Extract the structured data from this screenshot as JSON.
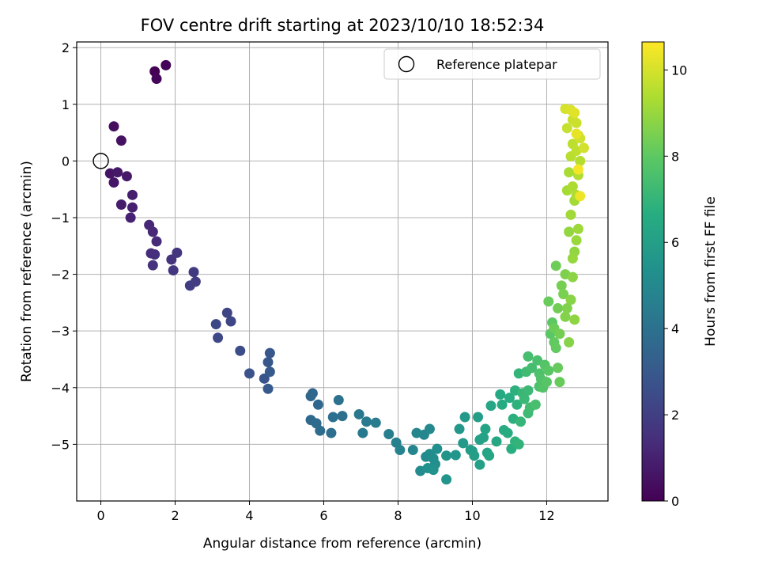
{
  "chart_data": {
    "type": "scatter",
    "title": "FOV centre drift starting at 2023/10/10 18:52:34",
    "xlabel": "Angular distance from reference (arcmin)",
    "ylabel": "Rotation from reference (arcmin)",
    "xlim": [
      -0.65,
      13.65
    ],
    "ylim": [
      -6.0,
      2.1
    ],
    "xticks": [
      0,
      2,
      4,
      6,
      8,
      10,
      12
    ],
    "yticks": [
      -5,
      -4,
      -3,
      -2,
      -1,
      0,
      1,
      2
    ],
    "grid": true,
    "legend": {
      "position": "upper-right",
      "label": "Reference platepar"
    },
    "reference_point": {
      "x": 0,
      "y": 0
    },
    "colorbar": {
      "label": "Hours from first FF file",
      "range": [
        0,
        10.65
      ],
      "ticks": [
        0,
        2,
        4,
        6,
        8,
        10
      ],
      "colormap": "viridis"
    },
    "points": [
      [
        1.45,
        1.58,
        0.0
      ],
      [
        1.75,
        1.69,
        0.1
      ],
      [
        1.5,
        1.45,
        0.15
      ],
      [
        0.35,
        0.61,
        0.4
      ],
      [
        0.55,
        0.36,
        0.5
      ],
      [
        0.25,
        -0.22,
        0.6
      ],
      [
        0.35,
        -0.38,
        0.65
      ],
      [
        0.45,
        -0.2,
        0.7
      ],
      [
        0.7,
        -0.27,
        0.75
      ],
      [
        0.55,
        -0.77,
        0.85
      ],
      [
        0.85,
        -0.6,
        0.9
      ],
      [
        0.85,
        -0.82,
        0.95
      ],
      [
        0.8,
        -1.0,
        1.0
      ],
      [
        1.3,
        -1.13,
        1.2
      ],
      [
        1.4,
        -1.25,
        1.25
      ],
      [
        1.5,
        -1.42,
        1.3
      ],
      [
        1.35,
        -1.63,
        1.4
      ],
      [
        1.45,
        -1.65,
        1.45
      ],
      [
        1.4,
        -1.84,
        1.5
      ],
      [
        1.9,
        -1.74,
        1.6
      ],
      [
        2.05,
        -1.62,
        1.65
      ],
      [
        1.95,
        -1.93,
        1.7
      ],
      [
        2.5,
        -1.96,
        1.85
      ],
      [
        2.55,
        -2.13,
        1.9
      ],
      [
        2.4,
        -2.2,
        1.95
      ],
      [
        3.4,
        -2.68,
        2.2
      ],
      [
        3.5,
        -2.83,
        2.25
      ],
      [
        3.1,
        -2.88,
        2.3
      ],
      [
        3.15,
        -3.12,
        2.35
      ],
      [
        3.75,
        -3.35,
        2.5
      ],
      [
        4.0,
        -3.75,
        2.7
      ],
      [
        4.4,
        -3.84,
        2.8
      ],
      [
        4.55,
        -3.39,
        2.9
      ],
      [
        4.5,
        -3.55,
        2.95
      ],
      [
        4.55,
        -3.72,
        3.0
      ],
      [
        4.5,
        -4.02,
        3.05
      ],
      [
        5.7,
        -4.1,
        3.5
      ],
      [
        5.65,
        -4.15,
        3.55
      ],
      [
        5.85,
        -4.3,
        3.6
      ],
      [
        5.65,
        -4.57,
        3.7
      ],
      [
        5.8,
        -4.63,
        3.75
      ],
      [
        5.9,
        -4.76,
        3.8
      ],
      [
        6.2,
        -4.8,
        3.85
      ],
      [
        6.25,
        -4.52,
        3.9
      ],
      [
        6.5,
        -4.5,
        3.95
      ],
      [
        6.4,
        -4.22,
        3.98
      ],
      [
        6.95,
        -4.47,
        4.3
      ],
      [
        7.05,
        -4.8,
        4.35
      ],
      [
        7.15,
        -4.6,
        4.4
      ],
      [
        7.4,
        -4.62,
        4.45
      ],
      [
        7.75,
        -4.82,
        4.6
      ],
      [
        7.95,
        -4.97,
        4.7
      ],
      [
        8.05,
        -5.1,
        4.75
      ],
      [
        8.4,
        -5.1,
        4.85
      ],
      [
        8.5,
        -4.8,
        4.9
      ],
      [
        8.7,
        -4.83,
        4.95
      ],
      [
        8.85,
        -4.73,
        5.0
      ],
      [
        8.6,
        -5.47,
        5.05
      ],
      [
        8.75,
        -5.22,
        5.1
      ],
      [
        8.85,
        -5.17,
        5.15
      ],
      [
        8.95,
        -5.25,
        5.2
      ],
      [
        9.0,
        -5.35,
        5.25
      ],
      [
        9.05,
        -5.08,
        5.3
      ],
      [
        8.8,
        -5.42,
        5.35
      ],
      [
        8.95,
        -5.45,
        5.4
      ],
      [
        9.3,
        -5.62,
        5.5
      ],
      [
        9.3,
        -5.2,
        5.55
      ],
      [
        9.55,
        -5.19,
        5.6
      ],
      [
        9.65,
        -4.73,
        5.7
      ],
      [
        9.75,
        -4.98,
        5.75
      ],
      [
        9.8,
        -4.52,
        5.8
      ],
      [
        9.95,
        -5.1,
        5.85
      ],
      [
        10.0,
        -5.12,
        5.9
      ],
      [
        10.05,
        -5.2,
        5.95
      ],
      [
        10.15,
        -4.52,
        6.0
      ],
      [
        10.2,
        -5.36,
        6.05
      ],
      [
        10.2,
        -4.92,
        6.1
      ],
      [
        10.3,
        -4.88,
        6.15
      ],
      [
        10.35,
        -4.73,
        6.2
      ],
      [
        10.4,
        -5.15,
        6.25
      ],
      [
        10.45,
        -5.2,
        6.3
      ],
      [
        10.5,
        -4.32,
        6.35
      ],
      [
        10.65,
        -4.95,
        6.4
      ],
      [
        10.75,
        -4.12,
        6.45
      ],
      [
        10.8,
        -4.3,
        6.5
      ],
      [
        10.85,
        -4.75,
        6.55
      ],
      [
        10.95,
        -4.8,
        6.6
      ],
      [
        11.0,
        -4.18,
        6.65
      ],
      [
        11.05,
        -5.08,
        6.7
      ],
      [
        11.1,
        -4.55,
        6.75
      ],
      [
        11.15,
        -4.05,
        6.8
      ],
      [
        11.2,
        -4.3,
        6.85
      ],
      [
        11.15,
        -4.95,
        6.9
      ],
      [
        11.25,
        -5.0,
        6.95
      ],
      [
        11.25,
        -3.75,
        7.0
      ],
      [
        11.3,
        -4.6,
        7.05
      ],
      [
        11.35,
        -4.1,
        7.1
      ],
      [
        11.4,
        -4.2,
        7.15
      ],
      [
        11.5,
        -4.05,
        7.2
      ],
      [
        11.5,
        -4.45,
        7.25
      ],
      [
        11.45,
        -3.72,
        7.3
      ],
      [
        11.55,
        -4.35,
        7.35
      ],
      [
        11.6,
        -3.65,
        7.4
      ],
      [
        11.5,
        -3.45,
        7.45
      ],
      [
        11.7,
        -4.3,
        7.5
      ],
      [
        11.75,
        -3.52,
        7.55
      ],
      [
        11.8,
        -3.98,
        7.6
      ],
      [
        11.8,
        -3.75,
        7.65
      ],
      [
        11.85,
        -3.85,
        7.7
      ],
      [
        11.9,
        -4.0,
        7.75
      ],
      [
        11.95,
        -3.6,
        7.8
      ],
      [
        12.0,
        -3.9,
        7.85
      ],
      [
        12.05,
        -3.7,
        7.9
      ],
      [
        12.1,
        -3.05,
        7.95
      ],
      [
        12.15,
        -2.85,
        8.0
      ],
      [
        12.2,
        -3.2,
        8.05
      ],
      [
        12.25,
        -3.3,
        8.1
      ],
      [
        12.3,
        -3.65,
        8.15
      ],
      [
        12.35,
        -3.9,
        8.18
      ],
      [
        12.05,
        -2.48,
        8.2
      ],
      [
        12.2,
        -2.95,
        8.25
      ],
      [
        12.25,
        -1.85,
        8.3
      ],
      [
        12.3,
        -2.6,
        8.35
      ],
      [
        12.35,
        -3.05,
        8.4
      ],
      [
        12.4,
        -2.2,
        8.45
      ],
      [
        12.45,
        -2.35,
        8.5
      ],
      [
        12.5,
        -2.0,
        8.55
      ],
      [
        12.55,
        -2.6,
        8.6
      ],
      [
        12.5,
        -2.75,
        8.65
      ],
      [
        12.6,
        -3.2,
        8.7
      ],
      [
        12.65,
        -2.45,
        8.75
      ],
      [
        12.7,
        -2.05,
        8.8
      ],
      [
        12.75,
        -2.8,
        8.85
      ],
      [
        12.75,
        -1.6,
        8.9
      ],
      [
        12.6,
        -1.25,
        8.95
      ],
      [
        12.7,
        -1.72,
        9.0
      ],
      [
        12.8,
        -1.4,
        9.05
      ],
      [
        12.85,
        -1.2,
        9.1
      ],
      [
        12.65,
        -0.95,
        9.15
      ],
      [
        12.75,
        -0.7,
        9.2
      ],
      [
        12.55,
        -0.52,
        9.25
      ],
      [
        12.6,
        -0.2,
        9.3
      ],
      [
        12.7,
        -0.45,
        9.35
      ],
      [
        12.8,
        -0.6,
        9.4
      ],
      [
        12.85,
        -0.25,
        9.45
      ],
      [
        12.9,
        0.0,
        9.5
      ],
      [
        12.65,
        0.08,
        9.55
      ],
      [
        12.7,
        0.3,
        9.6
      ],
      [
        12.8,
        0.18,
        9.65
      ],
      [
        12.85,
        0.45,
        9.7
      ],
      [
        12.55,
        0.58,
        9.75
      ],
      [
        12.7,
        0.73,
        9.8
      ],
      [
        12.8,
        0.67,
        9.85
      ],
      [
        12.9,
        0.4,
        9.9
      ],
      [
        13.0,
        0.23,
        9.95
      ],
      [
        12.5,
        0.92,
        10.0
      ],
      [
        12.65,
        0.9,
        10.1
      ],
      [
        12.75,
        0.85,
        10.2
      ],
      [
        12.8,
        0.48,
        10.3
      ],
      [
        12.9,
        -0.62,
        10.4
      ],
      [
        12.85,
        -0.15,
        10.5
      ]
    ]
  }
}
